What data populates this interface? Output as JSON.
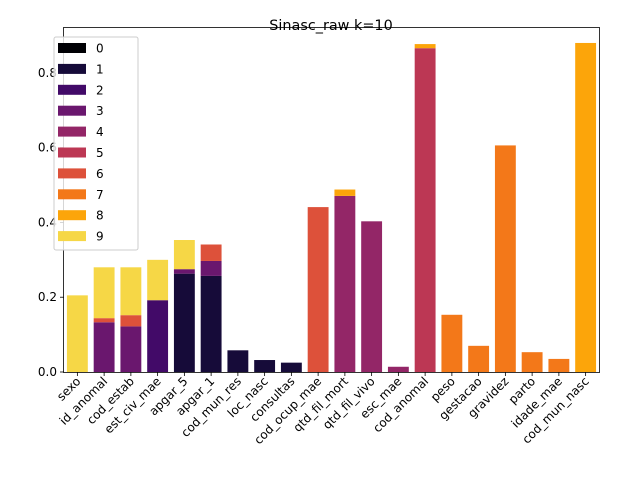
{
  "chart_data": {
    "type": "bar",
    "stacked": true,
    "title": "Sinasc_raw k=10",
    "xlabel": "",
    "ylabel": "",
    "ylim": [
      0,
      0.92
    ],
    "yticks": [
      0.0,
      0.2,
      0.4,
      0.6,
      0.8
    ],
    "ytick_labels": [
      "0.0",
      "0.2",
      "0.4",
      "0.6",
      "0.8"
    ],
    "grid": false,
    "legend_position": "upper-left",
    "categories": [
      "sexo",
      "id_anomal",
      "cod_estab",
      "est_civ_mae",
      "apgar_5",
      "apgar_1",
      "cod_mun_res",
      "loc_nasc",
      "consultas",
      "cod_ocup_mae",
      "qtd_fil_mort",
      "qtd_fil_vivo",
      "esc_mae",
      "cod_anomal",
      "peso",
      "gestacao",
      "gravidez",
      "parto",
      "idade_mae",
      "cod_mun_nasc"
    ],
    "series": [
      {
        "name": "0",
        "color": "#000004",
        "values": [
          0,
          0,
          0,
          0,
          0,
          0,
          0,
          0,
          0,
          0,
          0,
          0,
          0,
          0,
          0,
          0,
          0,
          0,
          0,
          0
        ]
      },
      {
        "name": "1",
        "color": "#160b39",
        "values": [
          0,
          0,
          0,
          0,
          0.263,
          0.257,
          0.058,
          0.032,
          0.025,
          0,
          0,
          0,
          0,
          0,
          0,
          0,
          0,
          0,
          0,
          0
        ]
      },
      {
        "name": "2",
        "color": "#420a68",
        "values": [
          0,
          0,
          0,
          0.192,
          0,
          0,
          0,
          0,
          0,
          0,
          0,
          0,
          0,
          0,
          0,
          0,
          0,
          0,
          0,
          0
        ]
      },
      {
        "name": "3",
        "color": "#6a176e",
        "values": [
          0,
          0.133,
          0.122,
          0,
          0.012,
          0.04,
          0,
          0,
          0,
          0,
          0,
          0,
          0,
          0,
          0,
          0,
          0,
          0,
          0,
          0
        ]
      },
      {
        "name": "4",
        "color": "#932667",
        "values": [
          0,
          0,
          0,
          0,
          0,
          0,
          0,
          0,
          0,
          0,
          0.471,
          0.403,
          0.014,
          0,
          0,
          0,
          0,
          0,
          0,
          0
        ]
      },
      {
        "name": "5",
        "color": "#bc3754",
        "values": [
          0,
          0,
          0,
          0,
          0,
          0,
          0,
          0,
          0,
          0,
          0,
          0,
          0,
          0.866,
          0,
          0,
          0,
          0,
          0,
          0
        ]
      },
      {
        "name": "6",
        "color": "#dd513a",
        "values": [
          0,
          0.011,
          0.03,
          0,
          0,
          0.044,
          0,
          0,
          0,
          0.441,
          0,
          0,
          0,
          0,
          0,
          0,
          0,
          0,
          0,
          0
        ]
      },
      {
        "name": "7",
        "color": "#f37819",
        "values": [
          0,
          0,
          0,
          0,
          0,
          0,
          0,
          0,
          0,
          0,
          0,
          0,
          0,
          0,
          0.153,
          0.07,
          0.606,
          0.053,
          0.035,
          0
        ]
      },
      {
        "name": "8",
        "color": "#fca50a",
        "values": [
          0,
          0,
          0,
          0,
          0,
          0,
          0,
          0,
          0,
          0,
          0.017,
          0,
          0,
          0.011,
          0,
          0,
          0,
          0,
          0,
          0.88
        ]
      },
      {
        "name": "9",
        "color": "#f6d746",
        "values": [
          0.205,
          0.136,
          0.128,
          0.108,
          0.078,
          0,
          0,
          0,
          0,
          0,
          0,
          0,
          0,
          0,
          0,
          0,
          0,
          0,
          0,
          0
        ]
      }
    ]
  }
}
